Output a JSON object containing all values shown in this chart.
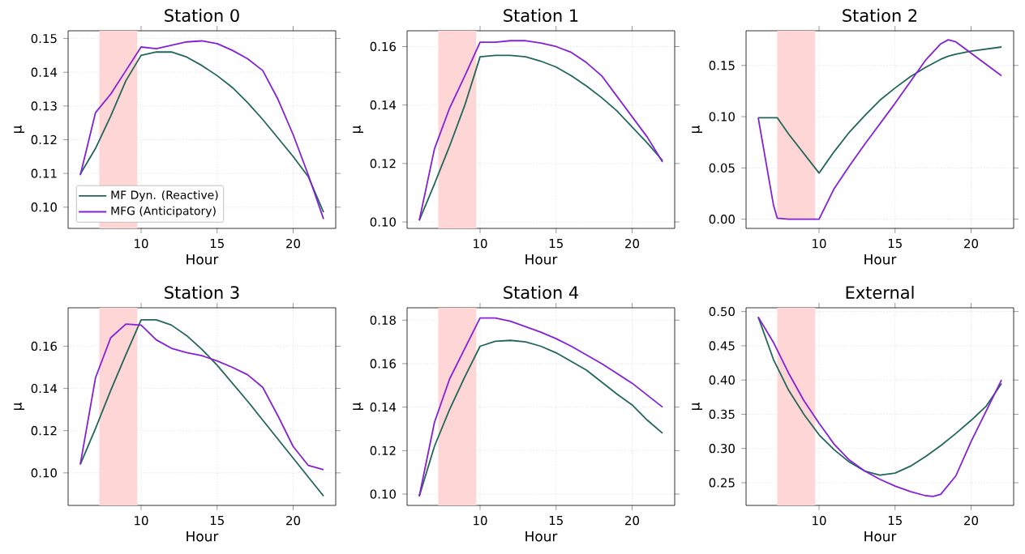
{
  "chart_data": [
    {
      "type": "line",
      "title": "Station 0",
      "xlabel": "Hour",
      "ylabel": "μ",
      "xlim": [
        5.2,
        22.8
      ],
      "ylim": [
        0.0937,
        0.1523
      ],
      "xticks": [
        10,
        15,
        20
      ],
      "yticks": [
        {
          "value": 0.1,
          "label": "0.10"
        },
        {
          "value": 0.11,
          "label": "0.11"
        },
        {
          "value": 0.12,
          "label": "0.12"
        },
        {
          "value": 0.13,
          "label": "0.13"
        },
        {
          "value": 0.14,
          "label": "0.14"
        },
        {
          "value": 0.15,
          "label": "0.15"
        }
      ],
      "grid": true,
      "legend": "bottom left",
      "marker": "none",
      "line_style": "solid",
      "x": [
        6,
        7,
        8,
        9,
        10,
        11,
        12,
        13,
        14,
        15,
        16,
        17,
        18,
        19,
        20,
        21,
        22
      ],
      "bands": [
        {
          "axis": "x",
          "from": 7.25,
          "to": 9.75,
          "color": "#ffd6d6"
        }
      ],
      "series": [
        {
          "name": "MF Dyn. (Reactive)",
          "color": "#22665a",
          "values": [
            0.1098,
            0.1174,
            0.127,
            0.1375,
            0.145,
            0.146,
            0.146,
            0.1445,
            0.142,
            0.139,
            0.1355,
            0.131,
            0.126,
            0.1205,
            0.115,
            0.109,
            0.0985
          ]
        },
        {
          "name": "MFG (Anticipatory)",
          "color": "#8420d8",
          "values": [
            0.1095,
            0.128,
            0.1335,
            0.1405,
            0.1475,
            0.147,
            0.148,
            0.149,
            0.1493,
            0.1485,
            0.1465,
            0.144,
            0.1405,
            0.132,
            0.1215,
            0.1095,
            0.0965
          ]
        }
      ]
    },
    {
      "type": "line",
      "title": "Station 1",
      "xlabel": "Hour",
      "ylabel": "μ",
      "xlim": [
        5.2,
        22.8
      ],
      "ylim": [
        0.0978,
        0.1654
      ],
      "xticks": [
        10,
        15,
        20
      ],
      "yticks": [
        {
          "value": 0.1,
          "label": "0.10"
        },
        {
          "value": 0.12,
          "label": "0.12"
        },
        {
          "value": 0.14,
          "label": "0.14"
        },
        {
          "value": 0.16,
          "label": "0.16"
        }
      ],
      "grid": true,
      "marker": "none",
      "line_style": "solid",
      "x": [
        6,
        7,
        8,
        9,
        10,
        11,
        12,
        13,
        14,
        15,
        16,
        17,
        18,
        19,
        20,
        21,
        22
      ],
      "bands": [
        {
          "axis": "x",
          "from": 7.25,
          "to": 9.75,
          "color": "#ffd6d6"
        }
      ],
      "series": [
        {
          "color": "#22665a",
          "values": [
            0.1005,
            0.113,
            0.126,
            0.14,
            0.1565,
            0.157,
            0.157,
            0.1565,
            0.155,
            0.153,
            0.15,
            0.1465,
            0.1425,
            0.138,
            0.1325,
            0.127,
            0.121
          ]
        },
        {
          "color": "#8420d8",
          "values": [
            0.1005,
            0.125,
            0.139,
            0.15,
            0.1615,
            0.1615,
            0.162,
            0.162,
            0.1612,
            0.16,
            0.158,
            0.1545,
            0.15,
            0.143,
            0.136,
            0.129,
            0.1205
          ]
        }
      ]
    },
    {
      "type": "line",
      "title": "Station 2",
      "xlabel": "Hour",
      "ylabel": "μ",
      "xlim": [
        5.2,
        22.8
      ],
      "ylim": [
        -0.009,
        0.1838
      ],
      "xticks": [
        10,
        15,
        20
      ],
      "yticks": [
        {
          "value": 0,
          "label": "0.00"
        },
        {
          "value": 0.05,
          "label": "0.05"
        },
        {
          "value": 0.1,
          "label": "0.10"
        },
        {
          "value": 0.15,
          "label": "0.15"
        }
      ],
      "grid": true,
      "marker": "none",
      "line_style": "solid",
      "x": [
        6,
        7,
        7.25,
        8,
        9,
        10,
        11,
        12,
        13,
        14,
        15,
        16,
        17,
        18,
        18.5,
        19,
        20,
        21,
        22
      ],
      "bands": [
        {
          "axis": "x",
          "from": 7.25,
          "to": 9.75,
          "color": "#ffd6d6"
        }
      ],
      "series": [
        {
          "color": "#22665a",
          "values": [
            0.099,
            0.099,
            0.099,
            0.083,
            0.064,
            0.045,
            0.066,
            0.085,
            0.101,
            0.116,
            0.128,
            0.139,
            0.148,
            0.156,
            0.159,
            0.161,
            0.164,
            0.166,
            0.168
          ]
        },
        {
          "color": "#8420d8",
          "values": [
            0.099,
            0.014,
            0.001,
            0.0,
            0.0,
            0.0,
            0.03,
            0.052,
            0.073,
            0.093,
            0.113,
            0.134,
            0.155,
            0.171,
            0.175,
            0.173,
            0.162,
            0.151,
            0.14
          ]
        }
      ]
    },
    {
      "type": "line",
      "title": "Station 3",
      "xlabel": "Hour",
      "ylabel": "μ",
      "xlim": [
        5.2,
        22.8
      ],
      "ylim": [
        0.0846,
        0.1782
      ],
      "xticks": [
        10,
        15,
        20
      ],
      "yticks": [
        {
          "value": 0.1,
          "label": "0.10"
        },
        {
          "value": 0.12,
          "label": "0.12"
        },
        {
          "value": 0.14,
          "label": "0.14"
        },
        {
          "value": 0.16,
          "label": "0.16"
        }
      ],
      "grid": true,
      "marker": "none",
      "line_style": "solid",
      "x": [
        6,
        7,
        8,
        9,
        10,
        11,
        12,
        13,
        14,
        15,
        16,
        17,
        18,
        19,
        20,
        21,
        22
      ],
      "bands": [
        {
          "axis": "x",
          "from": 7.25,
          "to": 9.75,
          "color": "#ffd6d6"
        }
      ],
      "series": [
        {
          "color": "#22665a",
          "values": [
            0.104,
            0.121,
            0.139,
            0.156,
            0.1725,
            0.1725,
            0.17,
            0.165,
            0.1585,
            0.151,
            0.1425,
            0.134,
            0.125,
            0.116,
            0.107,
            0.098,
            0.089
          ]
        },
        {
          "color": "#8420d8",
          "values": [
            0.104,
            0.145,
            0.164,
            0.1705,
            0.17,
            0.163,
            0.159,
            0.157,
            0.1555,
            0.153,
            0.15,
            0.1465,
            0.1405,
            0.127,
            0.1125,
            0.1035,
            0.1015
          ]
        }
      ]
    },
    {
      "type": "line",
      "title": "Station 4",
      "xlabel": "Hour",
      "ylabel": "μ",
      "xlim": [
        5.2,
        22.8
      ],
      "ylim": [
        0.0948,
        0.1857
      ],
      "xticks": [
        10,
        15,
        20
      ],
      "yticks": [
        {
          "value": 0.1,
          "label": "0.10"
        },
        {
          "value": 0.12,
          "label": "0.12"
        },
        {
          "value": 0.14,
          "label": "0.14"
        },
        {
          "value": 0.16,
          "label": "0.16"
        },
        {
          "value": 0.18,
          "label": "0.18"
        }
      ],
      "grid": true,
      "marker": "none",
      "line_style": "solid",
      "x": [
        6,
        7,
        8,
        9,
        10,
        11,
        12,
        13,
        14,
        15,
        16,
        17,
        18,
        19,
        20,
        21,
        22
      ],
      "bands": [
        {
          "axis": "x",
          "from": 7.25,
          "to": 9.75,
          "color": "#ffd6d6"
        }
      ],
      "series": [
        {
          "color": "#22665a",
          "values": [
            0.099,
            0.122,
            0.139,
            0.154,
            0.168,
            0.1703,
            0.1707,
            0.17,
            0.168,
            0.165,
            0.161,
            0.157,
            0.1515,
            0.146,
            0.141,
            0.134,
            0.128
          ]
        },
        {
          "color": "#8420d8",
          "values": [
            0.099,
            0.133,
            0.153,
            0.167,
            0.181,
            0.181,
            0.1795,
            0.177,
            0.1745,
            0.1715,
            0.168,
            0.164,
            0.16,
            0.1555,
            0.151,
            0.1455,
            0.14
          ]
        }
      ]
    },
    {
      "type": "line",
      "title": "External",
      "xlabel": "Hour",
      "ylabel": "μ",
      "xlim": [
        5.2,
        22.8
      ],
      "ylim": [
        0.2168,
        0.5055
      ],
      "xticks": [
        10,
        15,
        20
      ],
      "yticks": [
        {
          "value": 0.25,
          "label": "0.25"
        },
        {
          "value": 0.3,
          "label": "0.30"
        },
        {
          "value": 0.35,
          "label": "0.35"
        },
        {
          "value": 0.4,
          "label": "0.40"
        },
        {
          "value": 0.45,
          "label": "0.45"
        },
        {
          "value": 0.5,
          "label": "0.50"
        }
      ],
      "grid": true,
      "marker": "none",
      "line_style": "solid",
      "x": [
        6,
        7,
        8,
        9,
        10,
        11,
        12,
        13,
        14,
        15,
        16,
        17,
        17.5,
        18,
        19,
        20,
        21,
        22
      ],
      "bands": [
        {
          "axis": "x",
          "from": 7.25,
          "to": 9.75,
          "color": "#ffd6d6"
        }
      ],
      "series": [
        {
          "color": "#22665a",
          "values": [
            0.492,
            0.43,
            0.385,
            0.35,
            0.32,
            0.298,
            0.28,
            0.267,
            0.261,
            0.264,
            0.274,
            0.288,
            0.296,
            0.304,
            0.322,
            0.341,
            0.362,
            0.395
          ]
        },
        {
          "color": "#8420d8",
          "values": [
            0.492,
            0.455,
            0.41,
            0.37,
            0.337,
            0.306,
            0.283,
            0.267,
            0.255,
            0.245,
            0.237,
            0.231,
            0.23,
            0.233,
            0.26,
            0.31,
            0.355,
            0.4
          ]
        }
      ]
    }
  ]
}
